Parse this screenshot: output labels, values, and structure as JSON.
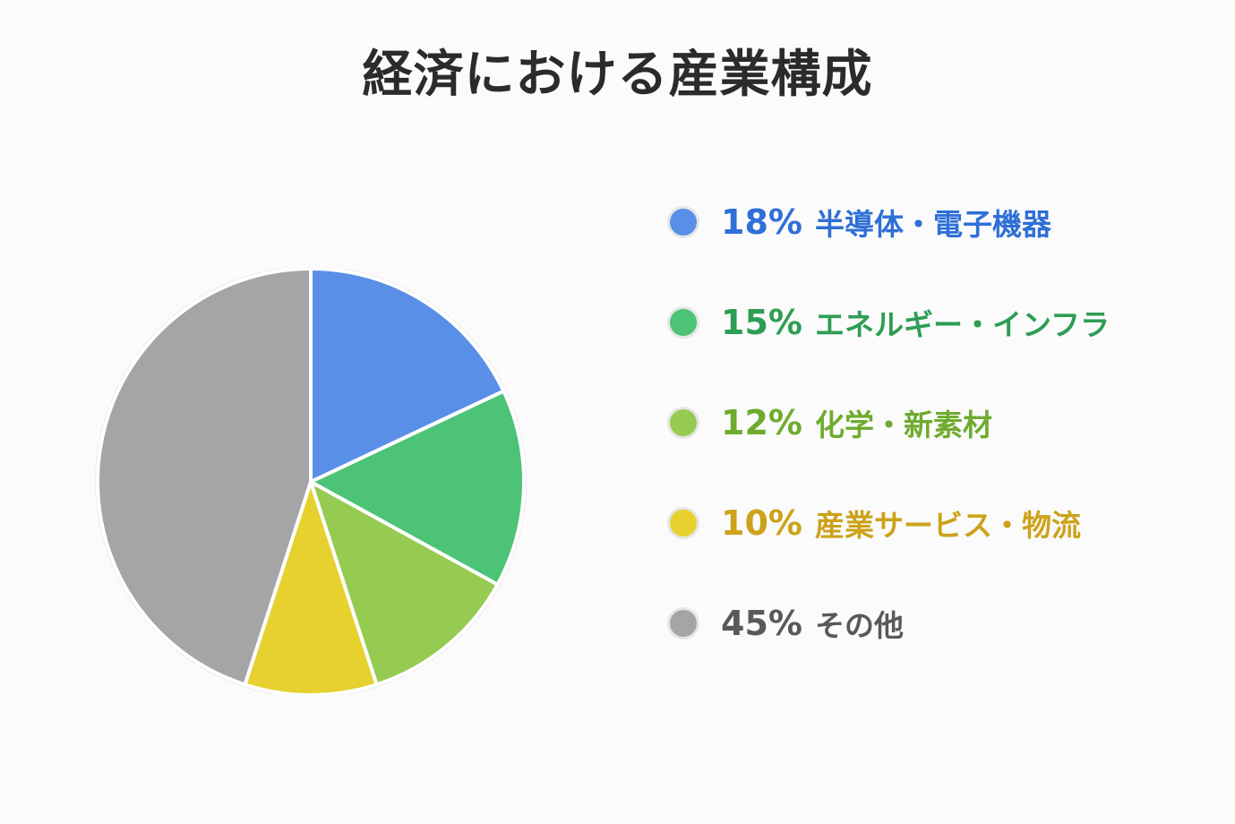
{
  "chart_data": {
    "type": "pie",
    "title": "経済における産業構成",
    "legend_position": "right",
    "slices": [
      {
        "pct_label": "18%",
        "name": "半導体・電子機器",
        "value": 18,
        "color": "#5a8fe8",
        "text_color": "#2f6fd6"
      },
      {
        "pct_label": "15%",
        "name": "エネルギー・インフラ",
        "value": 15,
        "color": "#4cc377",
        "text_color": "#2e9d55"
      },
      {
        "pct_label": "12%",
        "name": "化学・新素材",
        "value": 12,
        "color": "#96cb52",
        "text_color": "#6fab2e"
      },
      {
        "pct_label": "10%",
        "name": "産業サービス・物流",
        "value": 10,
        "color": "#e6d12e",
        "text_color": "#cca21a"
      },
      {
        "pct_label": "45%",
        "name": "その他",
        "value": 45,
        "color": "#a5a5a8",
        "text_color": "#595959"
      }
    ]
  }
}
